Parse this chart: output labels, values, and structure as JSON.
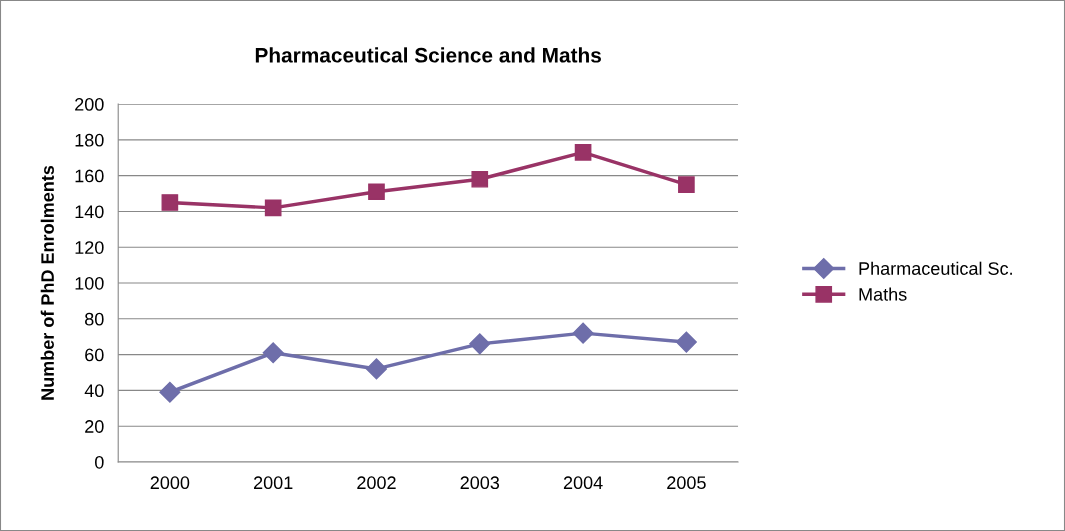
{
  "chart_data": {
    "type": "line",
    "title": "Pharmaceutical Science and Maths",
    "ylabel": "Number of PhD Enrolments",
    "categories": [
      "2000",
      "2001",
      "2002",
      "2003",
      "2004",
      "2005"
    ],
    "series": [
      {
        "name": "Pharmaceutical Sc.",
        "color": "#6e6eaa",
        "marker": "diamond",
        "values": [
          39,
          61,
          52,
          66,
          72,
          67
        ]
      },
      {
        "name": "Maths",
        "color": "#993366",
        "marker": "square",
        "values": [
          145,
          142,
          151,
          158,
          173,
          155
        ]
      }
    ],
    "ylim": [
      0,
      200
    ],
    "yticks": [
      0,
      20,
      40,
      60,
      80,
      100,
      120,
      140,
      160,
      180,
      200
    ],
    "grid": "y",
    "legend": "right",
    "line_style": "solid"
  }
}
